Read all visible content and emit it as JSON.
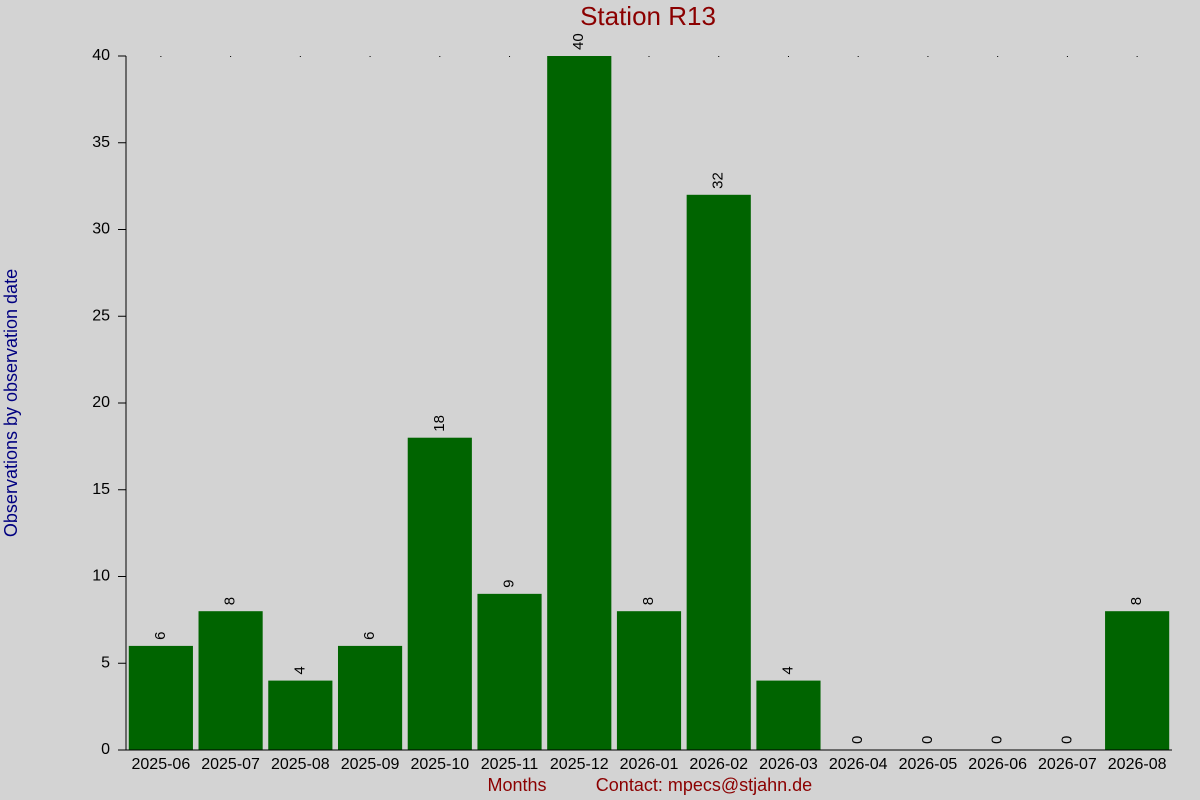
{
  "chart_data": {
    "type": "bar",
    "title": "Station R13",
    "y_label": "Observations by observation date",
    "x_label": "Months",
    "contact": "Contact: mpecs@stjahn.de",
    "categories": [
      "2025-06",
      "2025-07",
      "2025-08",
      "2025-09",
      "2025-10",
      "2025-11",
      "2025-12",
      "2026-01",
      "2026-02",
      "2026-03",
      "2026-04",
      "2026-05",
      "2026-06",
      "2026-07",
      "2026-08"
    ],
    "values": [
      6,
      8,
      4,
      6,
      18,
      9,
      40,
      8,
      32,
      4,
      0,
      0,
      0,
      0,
      8
    ],
    "color": "#006400",
    "ylim": [
      0,
      40
    ],
    "yticks": [
      0,
      5,
      10,
      15,
      20,
      25,
      30,
      35,
      40
    ],
    "grid": false
  }
}
